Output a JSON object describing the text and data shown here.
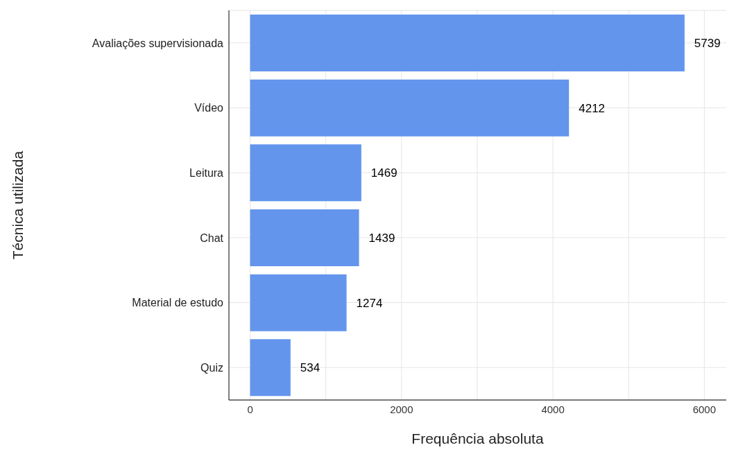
{
  "chart_data": {
    "type": "bar",
    "orientation": "horizontal",
    "xlabel": "Frequência absoluta",
    "ylabel": "Técnica utilizada",
    "categories": [
      "Avaliações supervisionada",
      "Vídeo",
      "Leitura",
      "Chat",
      "Material de estudo",
      "Quiz"
    ],
    "values": [
      5739,
      4212,
      1469,
      1439,
      1274,
      534
    ],
    "color": "#6495ed",
    "data_labels": true,
    "xlim": [
      -280,
      6290
    ],
    "xticks": [
      0,
      {
        "value": 1000,
        "label": null
      },
      2000,
      {
        "value": 3000,
        "label": null
      },
      4000,
      {
        "value": 5000,
        "label": null
      },
      6000
    ],
    "grid": true
  }
}
